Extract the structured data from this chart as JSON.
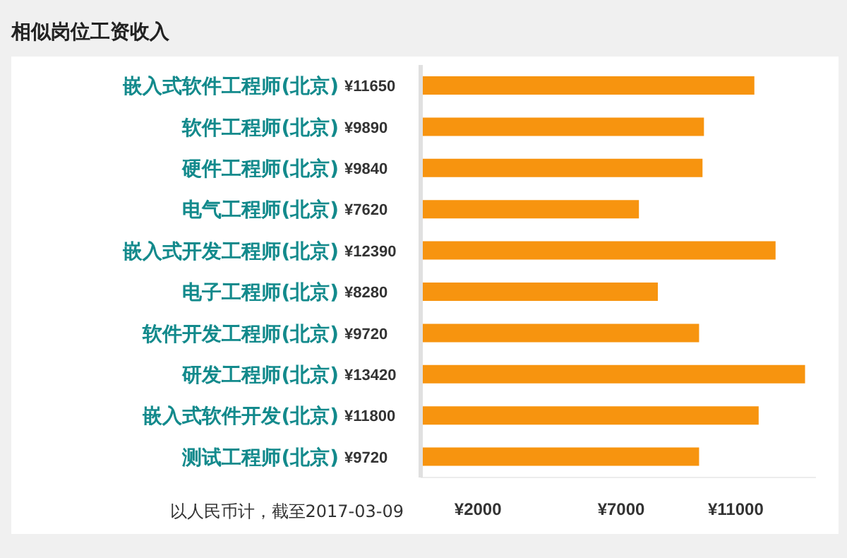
{
  "chart_data": {
    "type": "bar",
    "orientation": "horizontal",
    "title": "相似岗位工资收入",
    "categories": [
      "嵌入式软件工程师(北京)",
      "软件工程师(北京)",
      "硬件工程师(北京)",
      "电气工程师(北京)",
      "嵌入式开发工程师(北京)",
      "电子工程师(北京)",
      "软件开发工程师(北京)",
      "研发工程师(北京)",
      "嵌入式软件开发(北京)",
      "测试工程师(北京)"
    ],
    "values": [
      11650,
      9890,
      9840,
      7620,
      12390,
      8280,
      9720,
      13420,
      11800,
      9720
    ],
    "value_labels": [
      "¥11650",
      "¥9890",
      "¥9840",
      "¥7620",
      "¥12390",
      "¥8280",
      "¥9720",
      "¥13420",
      "¥11800",
      "¥9720"
    ],
    "color": "#f7940f",
    "xlim": [
      0,
      13800
    ],
    "xticks": [
      {
        "value": 2000,
        "label": "¥2000"
      },
      {
        "value": 7000,
        "label": "¥7000"
      },
      {
        "value": 11000,
        "label": "¥11000"
      }
    ],
    "annotations": [
      "以人民币计，截至2017-03-09"
    ],
    "grid": false,
    "legend": false
  }
}
